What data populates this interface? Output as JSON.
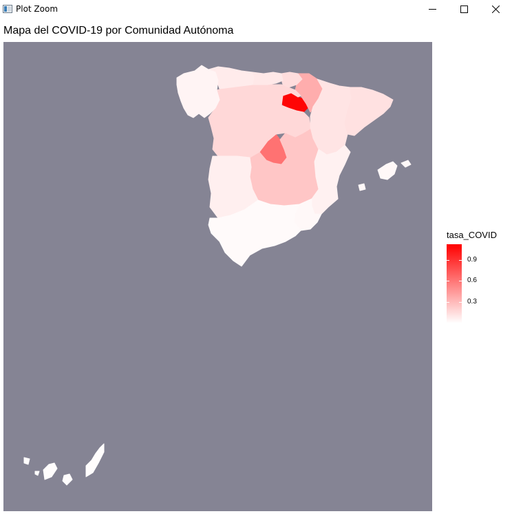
{
  "window": {
    "title": "Plot Zoom",
    "icons": [
      "app-icon",
      "minimize-icon",
      "maximize-icon",
      "close-icon"
    ]
  },
  "chart_data": {
    "type": "choropleth",
    "title": "Mapa del COVID-19 por Comunidad Autónoma",
    "legend": {
      "title": "tasa_COVID",
      "ticks": [
        0.3,
        0.6,
        0.9
      ],
      "tick_labels": [
        "0.3",
        "0.6",
        "0.9"
      ],
      "range": [
        0,
        1.12
      ],
      "low_color": "#ffffff",
      "high_color": "#ff0000",
      "placement": "right"
    },
    "background_color": "#858494",
    "regions": [
      {
        "name": "La Rioja",
        "value": 1.1
      },
      {
        "name": "Madrid",
        "value": 0.62
      },
      {
        "name": "Navarra",
        "value": 0.36
      },
      {
        "name": "Castilla-La Mancha",
        "value": 0.25
      },
      {
        "name": "Castilla y León",
        "value": 0.17
      },
      {
        "name": "País Vasco",
        "value": 0.15
      },
      {
        "name": "Aragón",
        "value": 0.12
      },
      {
        "name": "Cataluña",
        "value": 0.13
      },
      {
        "name": "Cantabria",
        "value": 0.1
      },
      {
        "name": "Asturias",
        "value": 0.09
      },
      {
        "name": "Extremadura",
        "value": 0.07
      },
      {
        "name": "Comunidad Valenciana",
        "value": 0.06
      },
      {
        "name": "Galicia",
        "value": 0.05
      },
      {
        "name": "Islas Baleares",
        "value": 0.03
      },
      {
        "name": "Murcia",
        "value": 0.03
      },
      {
        "name": "Andalucía",
        "value": 0.02
      },
      {
        "name": "Canarias",
        "value": 0.01
      }
    ]
  }
}
